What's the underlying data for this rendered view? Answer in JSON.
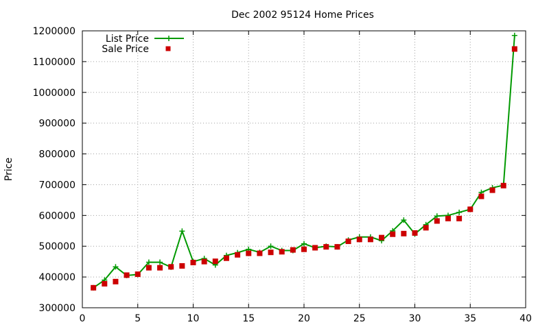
{
  "chart_data": {
    "type": "line",
    "title": "Dec 2002 95124 Home Prices",
    "xlabel": "",
    "ylabel": "Price",
    "xlim": [
      0,
      40
    ],
    "ylim": [
      300000,
      1200000
    ],
    "x_ticks": [
      "0",
      "5",
      "10",
      "15",
      "20",
      "25",
      "30",
      "35",
      "40"
    ],
    "y_ticks": [
      "300000",
      "400000",
      "500000",
      "600000",
      "700000",
      "800000",
      "900000",
      "1000000",
      "1100000",
      "1200000"
    ],
    "grid": true,
    "legend_position": "top-left",
    "colors": {
      "list": "#009900",
      "sale": "#cc0000",
      "grid": "#a0a0a0"
    },
    "series": [
      {
        "name": "List Price",
        "style": "lines+points",
        "marker": "plus",
        "x": [
          1,
          2,
          3,
          4,
          5,
          6,
          7,
          8,
          9,
          10,
          11,
          12,
          13,
          14,
          15,
          16,
          17,
          18,
          19,
          20,
          21,
          22,
          23,
          24,
          25,
          26,
          27,
          28,
          29,
          30,
          31,
          32,
          33,
          34,
          35,
          36,
          37,
          38,
          39
        ],
        "y": [
          365000,
          390000,
          433000,
          405000,
          408000,
          448000,
          448000,
          432000,
          549000,
          450000,
          460000,
          439000,
          470000,
          479000,
          490000,
          480000,
          500000,
          486000,
          486000,
          508000,
          495000,
          500000,
          498000,
          520000,
          530000,
          530000,
          518000,
          550000,
          585000,
          540000,
          570000,
          598000,
          600000,
          610000,
          620000,
          675000,
          690000,
          698000,
          1185000
        ]
      },
      {
        "name": "Sale Price",
        "style": "points",
        "marker": "square",
        "x": [
          1,
          2,
          3,
          4,
          5,
          6,
          7,
          8,
          9,
          10,
          11,
          12,
          13,
          14,
          15,
          16,
          17,
          18,
          19,
          20,
          21,
          22,
          23,
          24,
          25,
          26,
          27,
          28,
          29,
          30,
          31,
          32,
          33,
          34,
          35,
          36,
          37,
          38,
          39
        ],
        "y": [
          365000,
          378000,
          385000,
          406000,
          409000,
          430000,
          430000,
          433000,
          436000,
          447000,
          450000,
          451000,
          461000,
          472000,
          477000,
          477000,
          480000,
          482000,
          488000,
          490000,
          495000,
          498000,
          498000,
          516000,
          522000,
          522000,
          528000,
          539000,
          541000,
          543000,
          560000,
          582000,
          590000,
          590000,
          620000,
          662000,
          682000,
          697000,
          1141000
        ]
      }
    ]
  }
}
